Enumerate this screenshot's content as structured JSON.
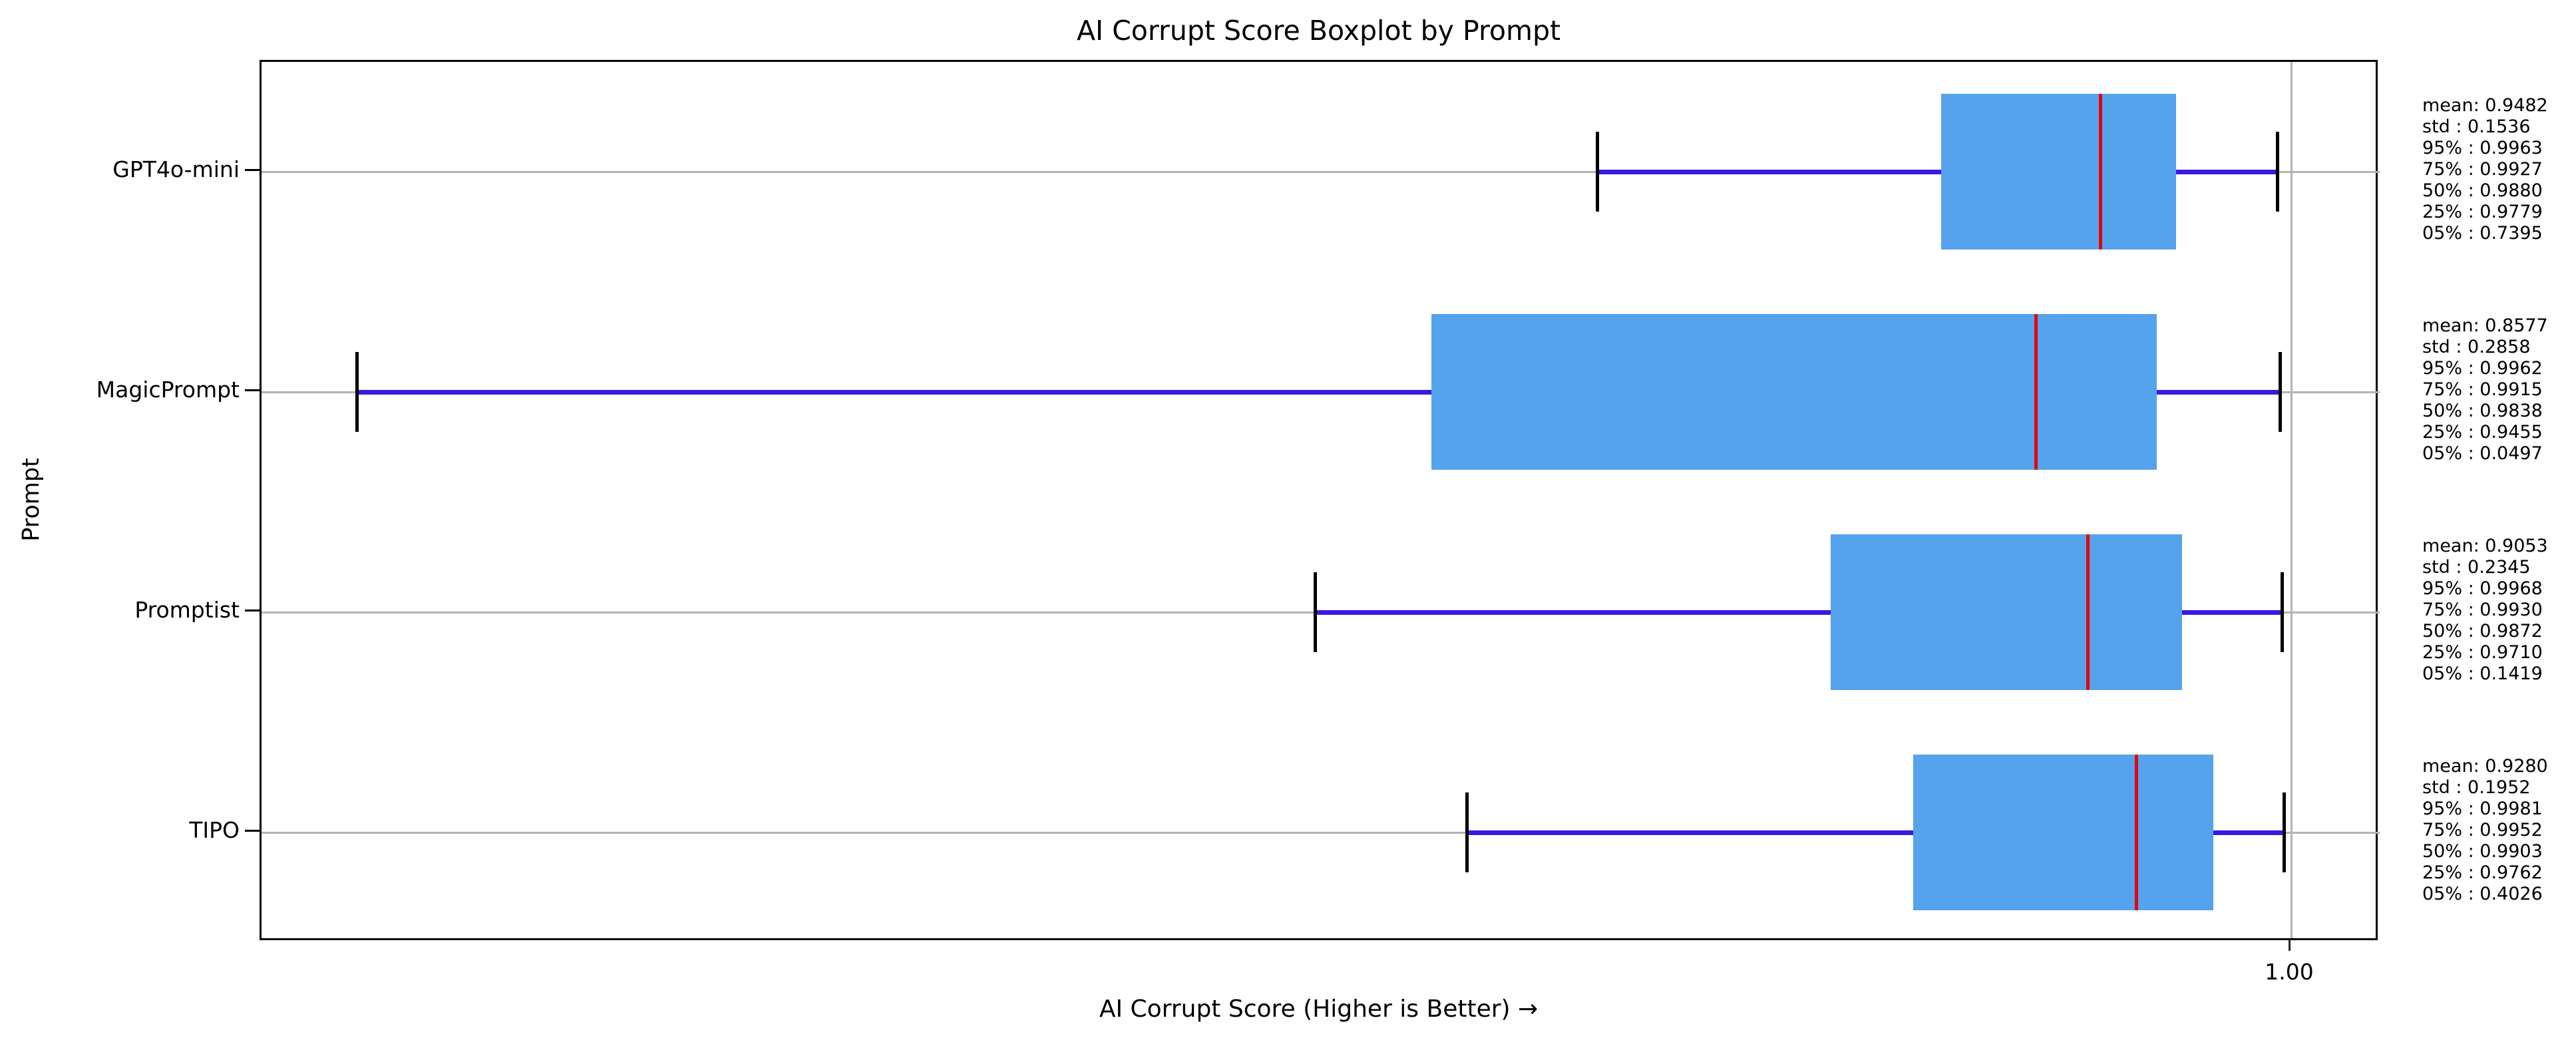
{
  "figure": {
    "title": "AI Corrupt Score Boxplot by Prompt",
    "xlabel": "AI Corrupt Score (Higher is Better) →",
    "ylabel": "Prompt",
    "x_tick_label": "1.00"
  },
  "colors": {
    "box_fill": "#55a3ec",
    "median": "#e8000b",
    "whisker": "#3b17e0",
    "cap": "#000000",
    "grid": "#b3b3b3",
    "spine": "#000000",
    "text": "#000000",
    "background": "#ffffff"
  },
  "chart_data": {
    "type": "boxplot",
    "orientation": "horizontal",
    "title": "AI Corrupt Score Boxplot by Prompt",
    "xlabel": "AI Corrupt Score (Higher is Better) →",
    "ylabel": "Prompt",
    "grid": true,
    "legend": "none",
    "x_ticks": [
      {
        "label": "1.00",
        "value": 1.0,
        "axis_fraction": 0.9582
      }
    ],
    "categories": [
      "GPT4o-mini",
      "MagicPrompt",
      "Promptist",
      "TIPO"
    ],
    "series": [
      {
        "name": "GPT4o-mini",
        "stats": {
          "mean": 0.9482,
          "std": 0.1536,
          "p95": 0.9963,
          "p75": 0.9927,
          "p50": 0.988,
          "p25": 0.9779,
          "p05": 0.7395
        },
        "stats_lines": [
          "mean: 0.9482",
          "std : 0.1536",
          "95% : 0.9963",
          "75% : 0.9927",
          "50% : 0.9880",
          "25% : 0.9779",
          "05% : 0.7395"
        ],
        "box_axis_fractions": {
          "whisker_lo": 0.6305,
          "q1": 0.793,
          "median": 0.8681,
          "q3": 0.9039,
          "whisker_hi": 0.9517
        }
      },
      {
        "name": "MagicPrompt",
        "stats": {
          "mean": 0.8577,
          "std": 0.2858,
          "p95": 0.9962,
          "p75": 0.9915,
          "p50": 0.9838,
          "p25": 0.9455,
          "p05": 0.0497
        },
        "stats_lines": [
          "mean: 0.8577",
          "std : 0.2858",
          "95% : 0.9962",
          "75% : 0.9915",
          "50% : 0.9838",
          "25% : 0.9455",
          "05% : 0.0497"
        ],
        "box_axis_fractions": {
          "whisker_lo": 0.0449,
          "q1": 0.5523,
          "median": 0.8376,
          "q3": 0.8948,
          "whisker_hi": 0.9529
        }
      },
      {
        "name": "Promptist",
        "stats": {
          "mean": 0.9053,
          "std": 0.2345,
          "p95": 0.9968,
          "p75": 0.993,
          "p50": 0.9872,
          "p25": 0.971,
          "p05": 0.1419
        },
        "stats_lines": [
          "mean: 0.9053",
          "std : 0.2345",
          "95% : 0.9968",
          "75% : 0.9930",
          "50% : 0.9872",
          "25% : 0.9710",
          "05% : 0.1419"
        ],
        "box_axis_fractions": {
          "whisker_lo": 0.4973,
          "q1": 0.7408,
          "median": 0.8621,
          "q3": 0.9067,
          "whisker_hi": 0.9539
        }
      },
      {
        "name": "TIPO",
        "stats": {
          "mean": 0.928,
          "std": 0.1952,
          "p95": 0.9981,
          "p75": 0.9952,
          "p50": 0.9903,
          "p25": 0.9762,
          "p05": 0.4026
        },
        "stats_lines": [
          "mean: 0.9280",
          "std : 0.1952",
          "95% : 0.9981",
          "75% : 0.9952",
          "50% : 0.9903",
          "25% : 0.9762",
          "05% : 0.4026"
        ],
        "box_axis_fractions": {
          "whisker_lo": 0.5689,
          "q1": 0.7798,
          "median": 0.8851,
          "q3": 0.9214,
          "whisker_hi": 0.9549
        }
      }
    ]
  }
}
